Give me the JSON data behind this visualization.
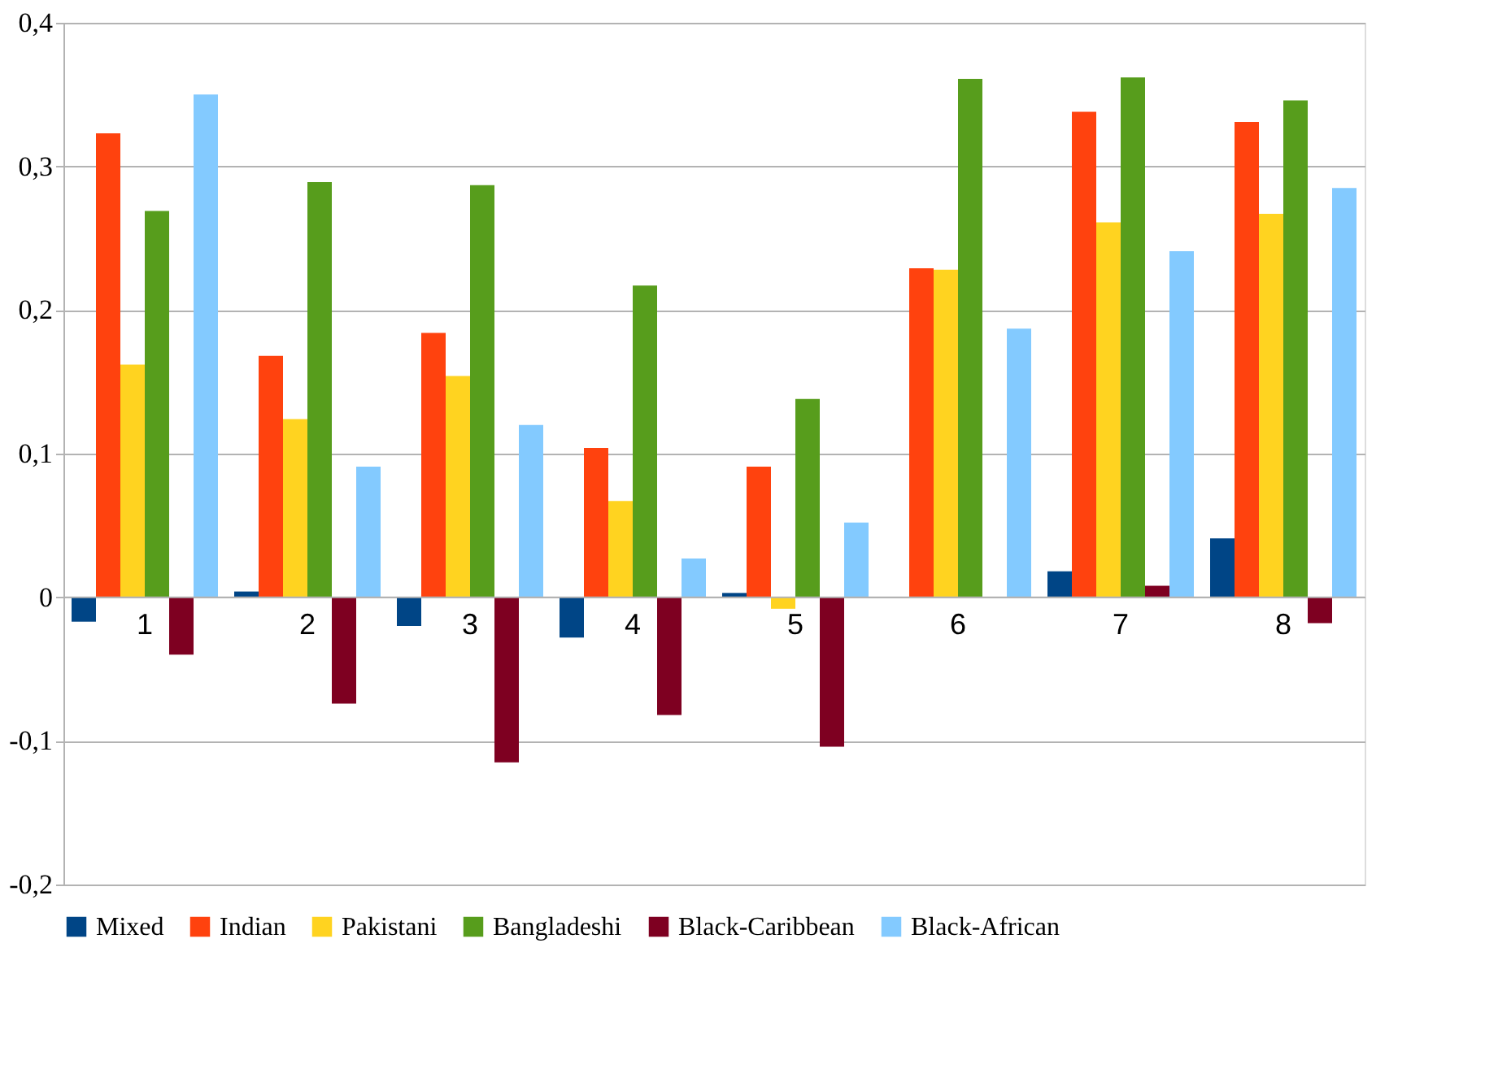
{
  "chart_data": {
    "type": "bar",
    "categories": [
      "1",
      "2",
      "3",
      "4",
      "5",
      "6",
      "7",
      "8"
    ],
    "series": [
      {
        "name": "Mixed",
        "color": "#004586",
        "values": [
          -0.017,
          0.004,
          -0.02,
          -0.028,
          0.003,
          null,
          0.018,
          0.041
        ]
      },
      {
        "name": "Indian",
        "color": "#ff420e",
        "values": [
          0.323,
          0.168,
          0.184,
          0.104,
          0.091,
          0.229,
          0.338,
          0.331
        ]
      },
      {
        "name": "Pakistani",
        "color": "#ffd320",
        "values": [
          0.162,
          0.124,
          0.154,
          0.067,
          -0.008,
          0.228,
          0.261,
          0.267
        ]
      },
      {
        "name": "Bangladeshi",
        "color": "#579d1c",
        "values": [
          0.269,
          0.289,
          0.287,
          0.217,
          0.138,
          0.361,
          0.362,
          0.346
        ]
      },
      {
        "name": "Black-Caribbean",
        "color": "#7e0021",
        "values": [
          -0.04,
          -0.074,
          -0.115,
          -0.082,
          -0.104,
          null,
          0.008,
          -0.018
        ]
      },
      {
        "name": "Black-African",
        "color": "#83caff",
        "values": [
          0.35,
          0.091,
          0.12,
          0.027,
          0.052,
          0.187,
          0.241,
          0.285
        ]
      }
    ],
    "ylim": [
      -0.2,
      0.4
    ],
    "yticks": [
      {
        "value": -0.2,
        "label": "-0,2"
      },
      {
        "value": -0.1,
        "label": "-0,1"
      },
      0,
      {
        "value": 0.1,
        "label": "0,1"
      },
      {
        "value": 0.2,
        "label": "0,2"
      },
      {
        "value": 0.3,
        "label": "0,3"
      },
      {
        "value": 0.4,
        "label": "0,4"
      }
    ],
    "grid": "y",
    "legend": "bottom"
  }
}
